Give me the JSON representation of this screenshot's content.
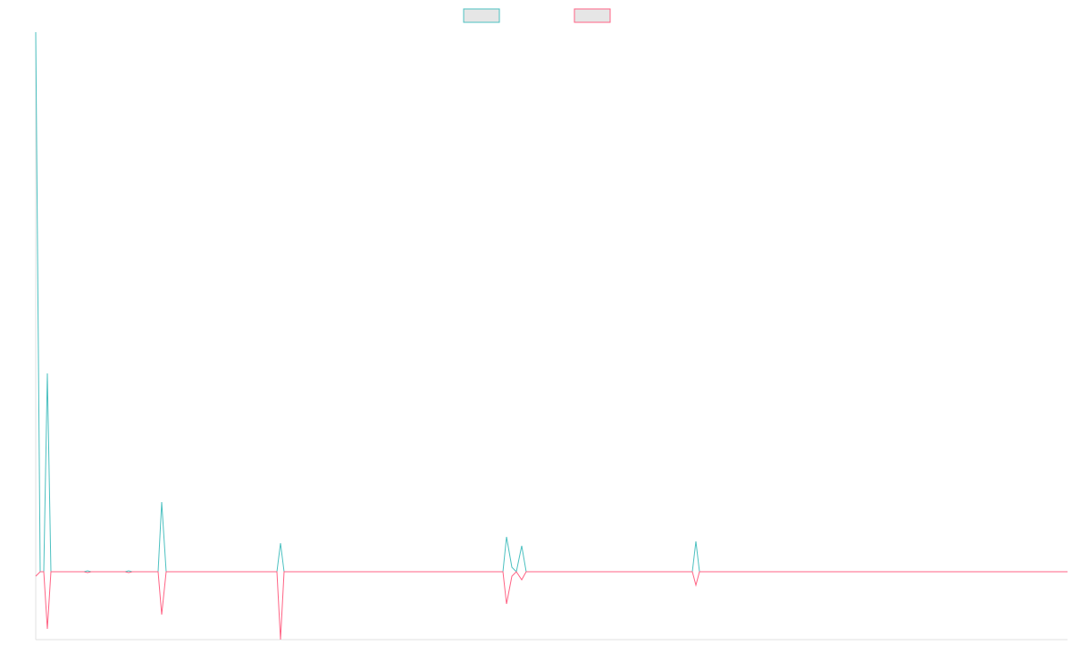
{
  "chart_data": {
    "type": "line",
    "x": [
      0,
      5,
      9,
      13,
      17,
      54,
      58,
      62,
      100,
      104,
      108,
      137,
      141,
      146,
      270,
      274,
      278,
      523,
      527,
      533,
      538,
      544,
      549,
      735,
      739,
      743,
      1155
    ],
    "series": [
      {
        "color": "#4bc0c0",
        "values": [
          604,
          0,
          0,
          222,
          0,
          0,
          1,
          0,
          0,
          1,
          0,
          0,
          78,
          0,
          0,
          32,
          0,
          0,
          39,
          5,
          0,
          29,
          0,
          0,
          34,
          0,
          0
        ]
      },
      {
        "color": "#ff6384",
        "values": [
          -5,
          0,
          0,
          -64,
          0,
          0,
          -1,
          0,
          0,
          -1,
          0,
          0,
          -48,
          0,
          0,
          -76,
          0,
          0,
          -36,
          -5,
          0,
          -9,
          0,
          0,
          -15,
          0,
          0
        ]
      }
    ],
    "xlim": [
      0,
      1155
    ],
    "ylim": [
      -76,
      604
    ],
    "legend": "top"
  }
}
